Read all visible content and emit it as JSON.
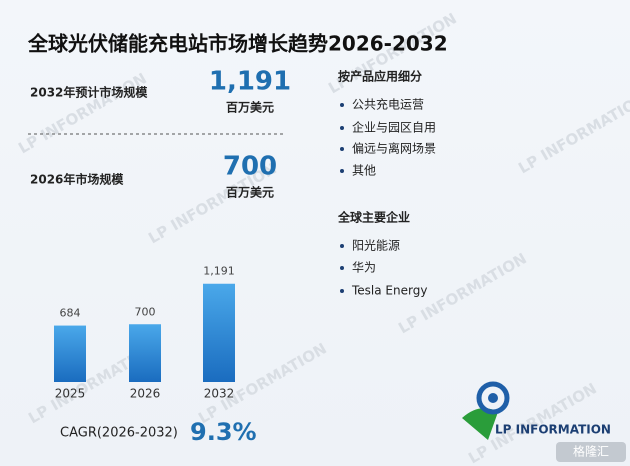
{
  "title": "全球光伏储能充电站市场增长趋势2026-2032",
  "watermark": "LP INFORMATION",
  "stats": [
    {
      "label": "2032年预计市场规模",
      "value": "1,191",
      "unit": "百万美元"
    },
    {
      "label": "2026年市场规模",
      "value": "700",
      "unit": "百万美元"
    }
  ],
  "segments": {
    "heading": "按产品应用细分",
    "items": [
      "公共充电运营",
      "企业与园区自用",
      "偏远与离网场景",
      "其他"
    ]
  },
  "companies": {
    "heading": "全球主要企业",
    "items": [
      "阳光能源",
      "华为",
      "Tesla Energy"
    ]
  },
  "cagr": {
    "label": "CAGR(2026-2032)",
    "value": "9.3%"
  },
  "logo": "LP INFORMATION",
  "badge": "格隆汇",
  "chart_data": {
    "type": "bar",
    "categories": [
      "2025",
      "2026",
      "2032"
    ],
    "values": [
      684,
      700,
      1191
    ],
    "value_labels": [
      "684",
      "700",
      "1,191"
    ],
    "color_top": "#4aa8ea",
    "color_bottom": "#1a6cbf"
  }
}
